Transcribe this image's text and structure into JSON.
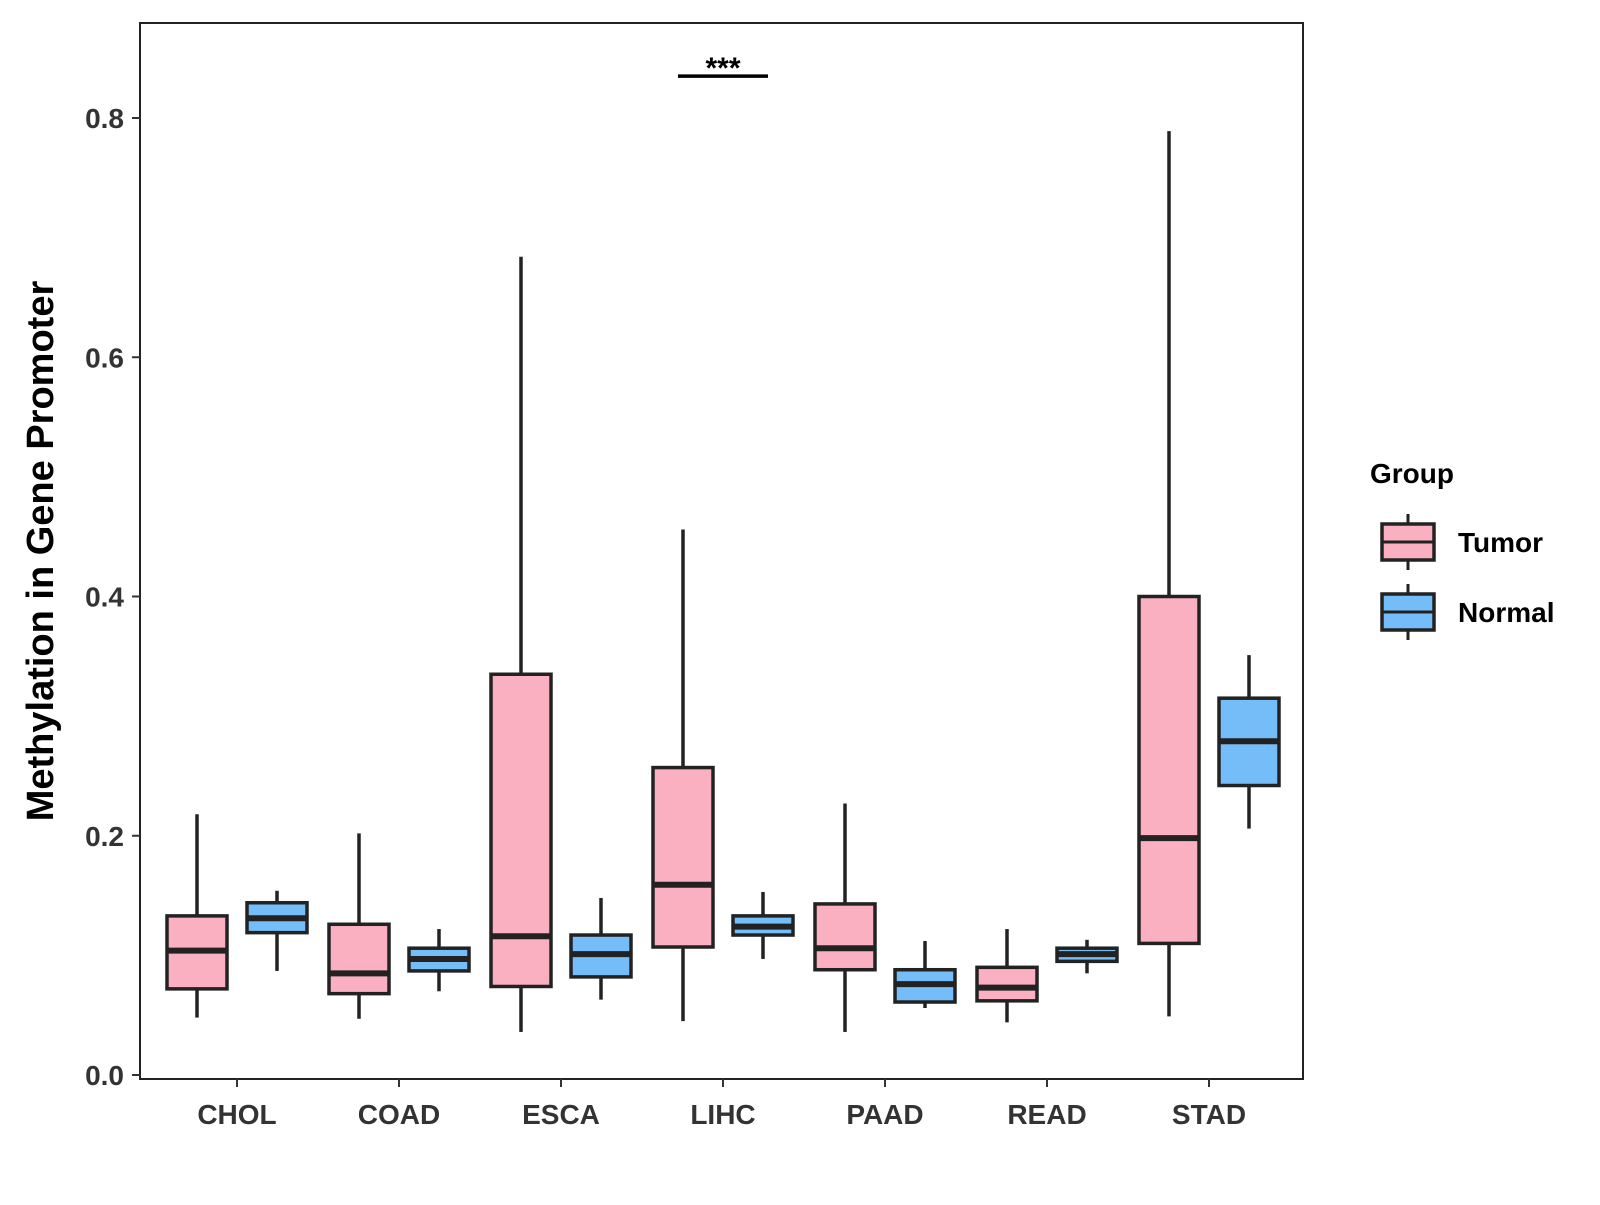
{
  "chart_data": {
    "type": "boxplot",
    "title": "",
    "xlabel": "",
    "ylabel": "Methylation in Gene Promoter",
    "ylim": [
      0.0,
      0.88
    ],
    "yticks": [
      "0.0",
      "0.2",
      "0.4",
      "0.6",
      "0.8"
    ],
    "ytick_values": [
      0.0,
      0.2,
      0.4,
      0.6,
      0.8
    ],
    "categories": [
      "CHOL",
      "COAD",
      "ESCA",
      "LIHC",
      "PAAD",
      "READ",
      "STAD"
    ],
    "legend": {
      "title": "Group",
      "position": "right",
      "entries": [
        {
          "name": "Tumor",
          "color": "#FBB0C1"
        },
        {
          "name": "Normal",
          "color": "#74BDF8"
        }
      ]
    },
    "series": [
      {
        "name": "Tumor",
        "color": "#FBB0C1",
        "boxes": [
          {
            "category": "CHOL",
            "min": 0.048,
            "q1": 0.072,
            "median": 0.104,
            "q3": 0.133,
            "max": 0.218
          },
          {
            "category": "COAD",
            "min": 0.047,
            "q1": 0.068,
            "median": 0.085,
            "q3": 0.126,
            "max": 0.202
          },
          {
            "category": "ESCA",
            "min": 0.036,
            "q1": 0.074,
            "median": 0.116,
            "q3": 0.335,
            "max": 0.684
          },
          {
            "category": "LIHC",
            "min": 0.045,
            "q1": 0.107,
            "median": 0.159,
            "q3": 0.257,
            "max": 0.456
          },
          {
            "category": "PAAD",
            "min": 0.036,
            "q1": 0.088,
            "median": 0.106,
            "q3": 0.143,
            "max": 0.227
          },
          {
            "category": "READ",
            "min": 0.044,
            "q1": 0.062,
            "median": 0.073,
            "q3": 0.09,
            "max": 0.122
          },
          {
            "category": "STAD",
            "min": 0.049,
            "q1": 0.11,
            "median": 0.198,
            "q3": 0.4,
            "max": 0.789
          }
        ]
      },
      {
        "name": "Normal",
        "color": "#74BDF8",
        "boxes": [
          {
            "category": "CHOL",
            "min": 0.087,
            "q1": 0.119,
            "median": 0.131,
            "q3": 0.144,
            "max": 0.154
          },
          {
            "category": "COAD",
            "min": 0.07,
            "q1": 0.087,
            "median": 0.097,
            "q3": 0.106,
            "max": 0.122
          },
          {
            "category": "ESCA",
            "min": 0.063,
            "q1": 0.082,
            "median": 0.101,
            "q3": 0.117,
            "max": 0.148
          },
          {
            "category": "LIHC",
            "min": 0.097,
            "q1": 0.117,
            "median": 0.124,
            "q3": 0.133,
            "max": 0.153
          },
          {
            "category": "PAAD",
            "min": 0.056,
            "q1": 0.061,
            "median": 0.076,
            "q3": 0.088,
            "max": 0.112
          },
          {
            "category": "READ",
            "min": 0.085,
            "q1": 0.095,
            "median": 0.101,
            "q3": 0.106,
            "max": 0.113
          },
          {
            "category": "STAD",
            "min": 0.206,
            "q1": 0.242,
            "median": 0.279,
            "q3": 0.315,
            "max": 0.351
          }
        ]
      }
    ],
    "annotations": [
      {
        "category": "LIHC",
        "text": "***",
        "y": 0.835
      }
    ]
  }
}
